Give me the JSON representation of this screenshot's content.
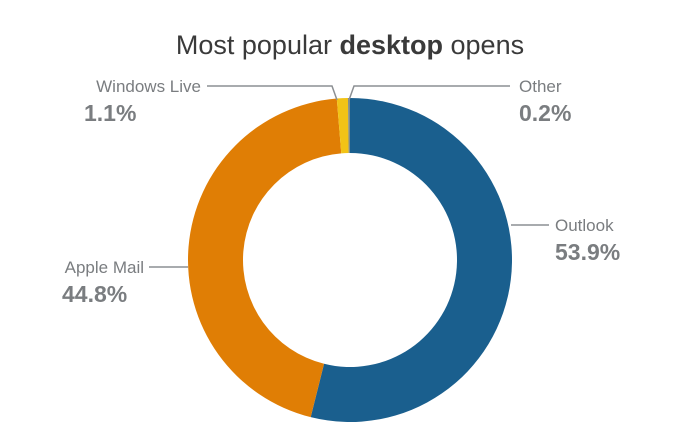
{
  "chart_data": {
    "type": "pie",
    "variant": "donut",
    "title": {
      "prefix": "Most popular ",
      "emphasis": "desktop",
      "suffix": " opens"
    },
    "slices": [
      {
        "label": "Outlook",
        "value": 53.9,
        "value_label": "53.9%",
        "color": "#1a5f8e"
      },
      {
        "label": "Apple Mail",
        "value": 44.8,
        "value_label": "44.8%",
        "color": "#e07e05"
      },
      {
        "label": "Windows Live",
        "value": 1.1,
        "value_label": "1.1%",
        "color": "#f2c316"
      },
      {
        "label": "Other",
        "value": 0.2,
        "value_label": "0.2%",
        "color": "#7f8c8d"
      }
    ],
    "legend": "none",
    "labels": "outside-with-leader-lines"
  }
}
